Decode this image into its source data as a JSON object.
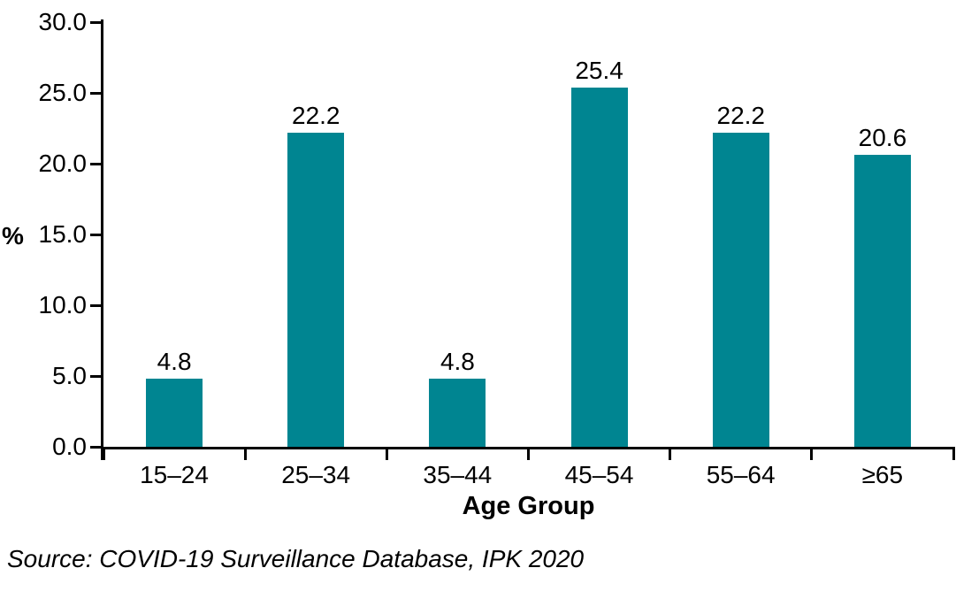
{
  "chart_data": {
    "type": "bar",
    "categories": [
      "15–24",
      "25–34",
      "35–44",
      "45–54",
      "55–64",
      "≥65"
    ],
    "values": [
      4.8,
      22.2,
      4.8,
      25.4,
      22.2,
      20.6
    ],
    "title": "",
    "xlabel": "Age Group",
    "ylabel": "%",
    "ylim": [
      0,
      30
    ],
    "ytick_step": 5,
    "ytick_format_decimals": 1,
    "bar_color": "#008591",
    "grid": false,
    "legend": "none",
    "value_labels_shown": true
  },
  "source": {
    "text": "Source: COVID-19 Surveillance Database, IPK 2020"
  }
}
